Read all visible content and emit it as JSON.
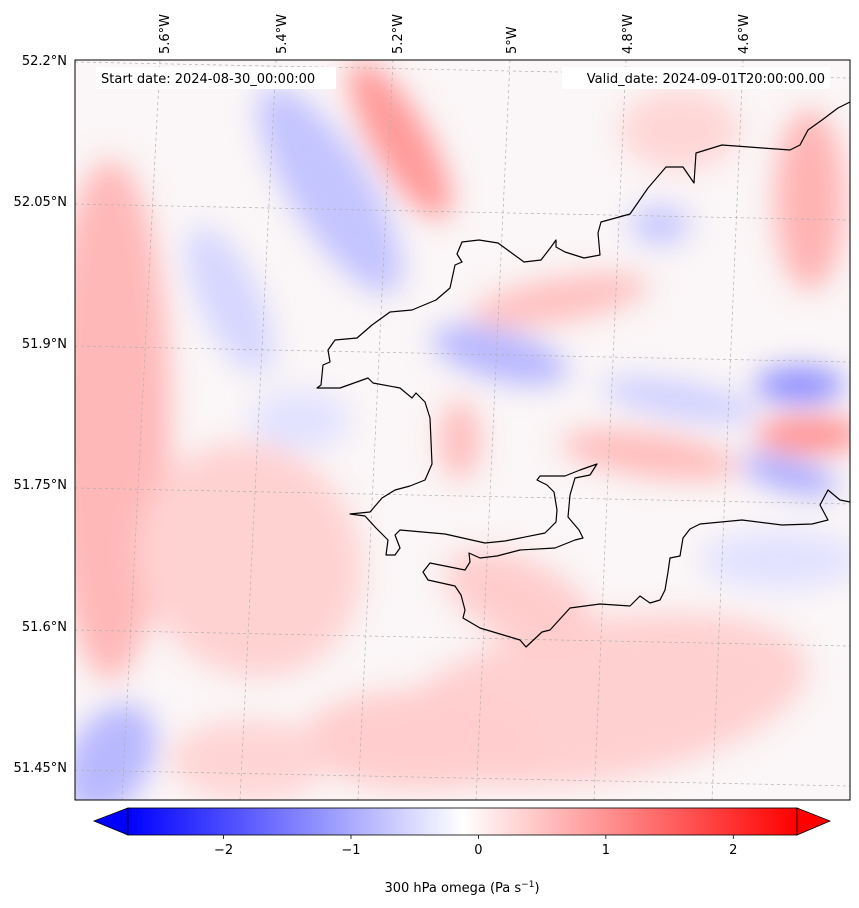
{
  "map": {
    "start_date": "Start date: 2024-08-30_00:00:00",
    "valid_date": "Valid_date: 2024-09-01T20:00:00.00",
    "lon_labels": [
      "5.6°W",
      "5.4°W",
      "5.2°W",
      "5°W",
      "4.8°W",
      "4.6°W"
    ],
    "lat_labels": [
      "52.2°N",
      "52.05°N",
      "51.9°N",
      "51.75°N",
      "51.6°N",
      "51.45°N"
    ],
    "coastline_color": "#000000",
    "gridline_style": "dashed-grey"
  },
  "colorbar": {
    "label": "300 hPa omega (Pa s",
    "label_sup": "−1",
    "label_tail": ")",
    "ticks": [
      "−2",
      "−1",
      "0",
      "1",
      "2"
    ],
    "tick_values": [
      -2,
      -1,
      0,
      1,
      2
    ],
    "range": [
      -2.75,
      2.5
    ],
    "colormap": "bwr",
    "color_min": "#0000ff",
    "color_mid": "#ffffff",
    "color_max": "#ff0000",
    "extend": "both"
  }
}
